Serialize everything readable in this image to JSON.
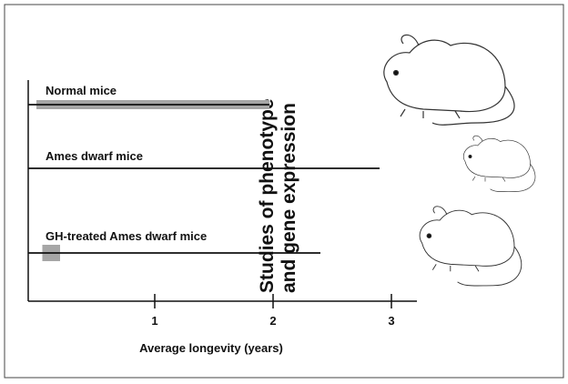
{
  "chart_data": {
    "type": "timeline",
    "categories": [
      "Normal mice",
      "Ames dwarf mice",
      "GH-treated Ames dwarf mice"
    ],
    "values": [
      1.97,
      2.9,
      2.4
    ],
    "shade_start": [
      0,
      null,
      0.05
    ],
    "shade_end": [
      1.97,
      null,
      0.2
    ],
    "color": "#111111",
    "shade_color": "#a6a6a6",
    "xlim": [
      0,
      3.2
    ],
    "xticks": [
      1,
      2,
      3
    ],
    "x_label": "Average longevity (years)",
    "annotation": [
      "Studies of phenotype",
      "and gene expression"
    ]
  }
}
